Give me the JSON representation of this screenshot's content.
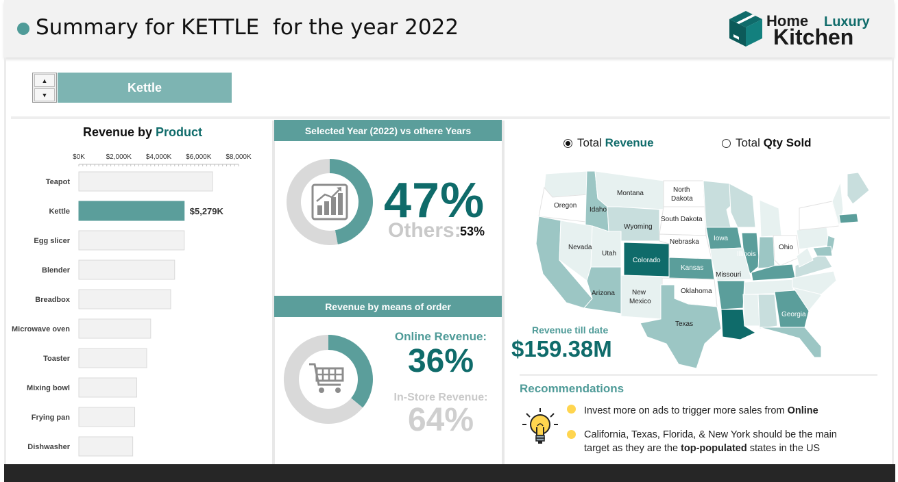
{
  "header": {
    "title": "Summary for KETTLE  for the year 2022",
    "logo": {
      "line1_a": "Home",
      "line1_b": "Luxury",
      "line2": "Kitchen"
    }
  },
  "selector": {
    "value": "Kettle"
  },
  "revenue_by_product": {
    "title_prefix": "Revenue by",
    "title_accent": "Product",
    "highlight_label": "$5,279K",
    "chart_data": {
      "type": "bar",
      "orientation": "horizontal",
      "categories": [
        "Teapot",
        "Kettle",
        "Egg slicer",
        "Blender",
        "Breadbox",
        "Microwave oven",
        "Toaster",
        "Mixing bowl",
        "Frying pan",
        "Dishwasher"
      ],
      "values": [
        6700,
        5279,
        5280,
        4800,
        4600,
        3600,
        3400,
        2900,
        2800,
        2700
      ],
      "highlight_category": "Kettle",
      "tick_labels": [
        "$0K",
        "$2,000K",
        "$4,000K",
        "$6,000K",
        "$8,000K"
      ],
      "xlim": [
        0,
        8000
      ],
      "colors": {
        "bar": "#f2f2f2",
        "bar_border": "#d9d9d9",
        "highlight": "#5b9e9b"
      }
    }
  },
  "year_compare": {
    "band_title": "Selected Year (2022) vs othere Years",
    "percent_label": "47%",
    "others_label": "Others:",
    "others_value": "53%",
    "chart_data": {
      "type": "pie",
      "variant": "donut",
      "labels": [
        "2022",
        "Others"
      ],
      "values": [
        47,
        53
      ],
      "colors": [
        "#5b9e9b",
        "#d9d9d9"
      ]
    },
    "icon": "bar-chart-growth-icon"
  },
  "order_means": {
    "band_title": "Revenue by means of order",
    "online_label": "Online Revenue:",
    "online_value": "36%",
    "instore_label": "In-Store Revenue:",
    "instore_value": "64%",
    "chart_data": {
      "type": "pie",
      "variant": "donut",
      "labels": [
        "Online",
        "In-Store"
      ],
      "values": [
        36,
        64
      ],
      "colors": [
        "#5b9e9b",
        "#d9d9d9"
      ]
    },
    "icon": "shopping-cart-icon"
  },
  "map": {
    "radio_revenue_prefix": "Total",
    "radio_revenue_accent": "Revenue",
    "radio_qty_prefix": "Total",
    "radio_qty_accent": "Qty Sold",
    "selected": "revenue",
    "labels": {
      "montana": "Montana",
      "north_dakota_1": "North",
      "north_dakota_2": "Dakota",
      "oregon": "Oregon",
      "idaho": "Idaho",
      "wyoming": "Wyoming",
      "south_dakota": "South Dakota",
      "nebraska": "Nebraska",
      "nevada": "Nevada",
      "utah": "Utah",
      "colorado": "Colorado",
      "kansas": "Kansas",
      "iowa": "Iowa",
      "illinois": "Illinois",
      "ohio": "Ohio",
      "missouri": "Missouri",
      "arizona": "Arizona",
      "new_mexico_1": "New",
      "new_mexico_2": "Mexico",
      "oklahoma": "Oklahoma",
      "texas": "Texas",
      "georgia": "Georgia"
    },
    "revenue_till_date_label": "Revenue till date",
    "revenue_till_date_value": "$159.38M",
    "colors": {
      "top": "#0f6b6a",
      "high": "#5b9e9b",
      "mid": "#9cc6c4",
      "low": "#c8dedd",
      "lowest": "#e7f1f0"
    }
  },
  "recommendations": {
    "title": "Recommendations",
    "item1_text": "Invest more on ads to trigger more sales from ",
    "item1_bold": "Online",
    "item2_line1": "California, Texas, Florida, & New York should be the main",
    "item2_pre": "target as they are the ",
    "item2_bold": "top-populated",
    "item2_post": " states in the US",
    "icon": "lightbulb-icon"
  }
}
